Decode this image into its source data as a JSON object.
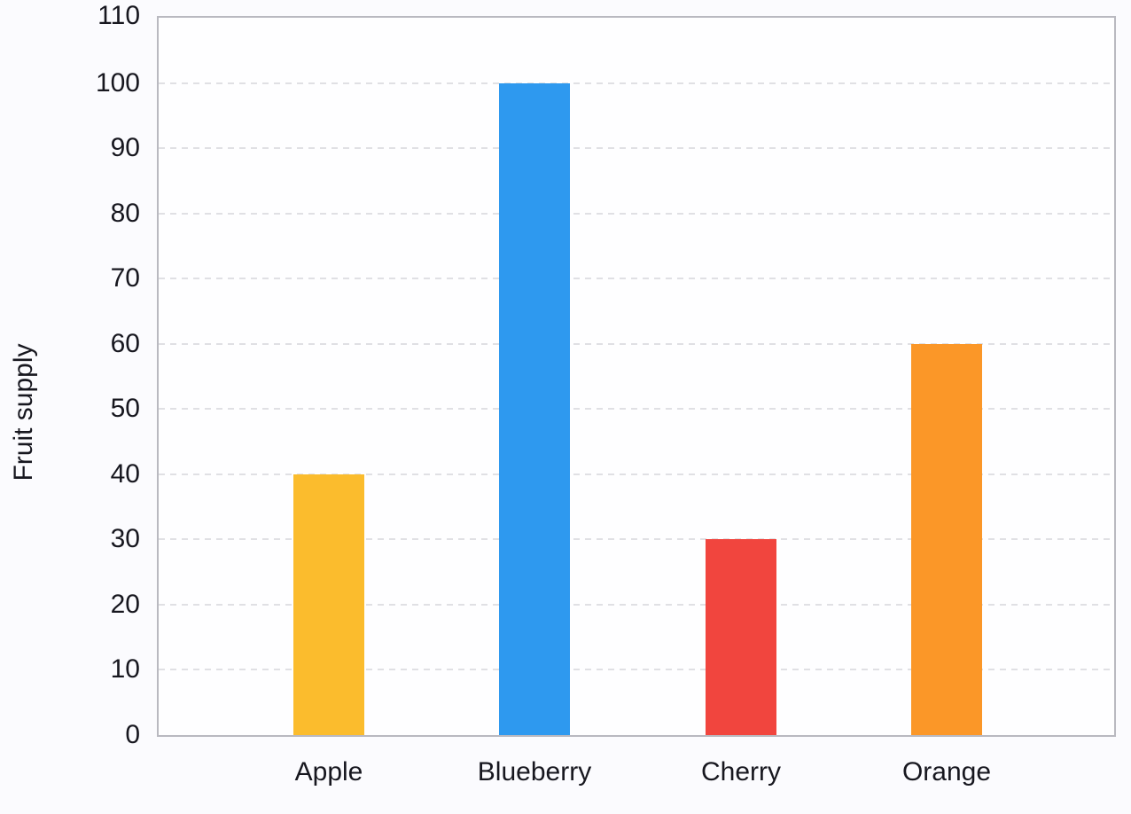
{
  "page": {
    "background": "#FBFBFE"
  },
  "chart_data": {
    "type": "bar",
    "title": "",
    "categories": [
      "Apple",
      "Blueberry",
      "Cherry",
      "Orange"
    ],
    "values": [
      40,
      100,
      30,
      60
    ],
    "bar_colors": [
      "#FBBC2D",
      "#2E99EF",
      "#F1453E",
      "#FB9728"
    ],
    "xlabel": "",
    "ylabel": "Fruit supply",
    "ylim": [
      0,
      110
    ],
    "ytick_step": 10,
    "yticks": [
      0,
      10,
      20,
      30,
      40,
      50,
      60,
      70,
      80,
      90,
      100,
      110
    ],
    "grid": "horizontal-dashed",
    "legend": "none",
    "colors": {
      "plot_background": "#FEFEFF",
      "axis_border": "#B9B9C0",
      "grid_line": "#E0E0E4",
      "text": "#17171F"
    }
  }
}
